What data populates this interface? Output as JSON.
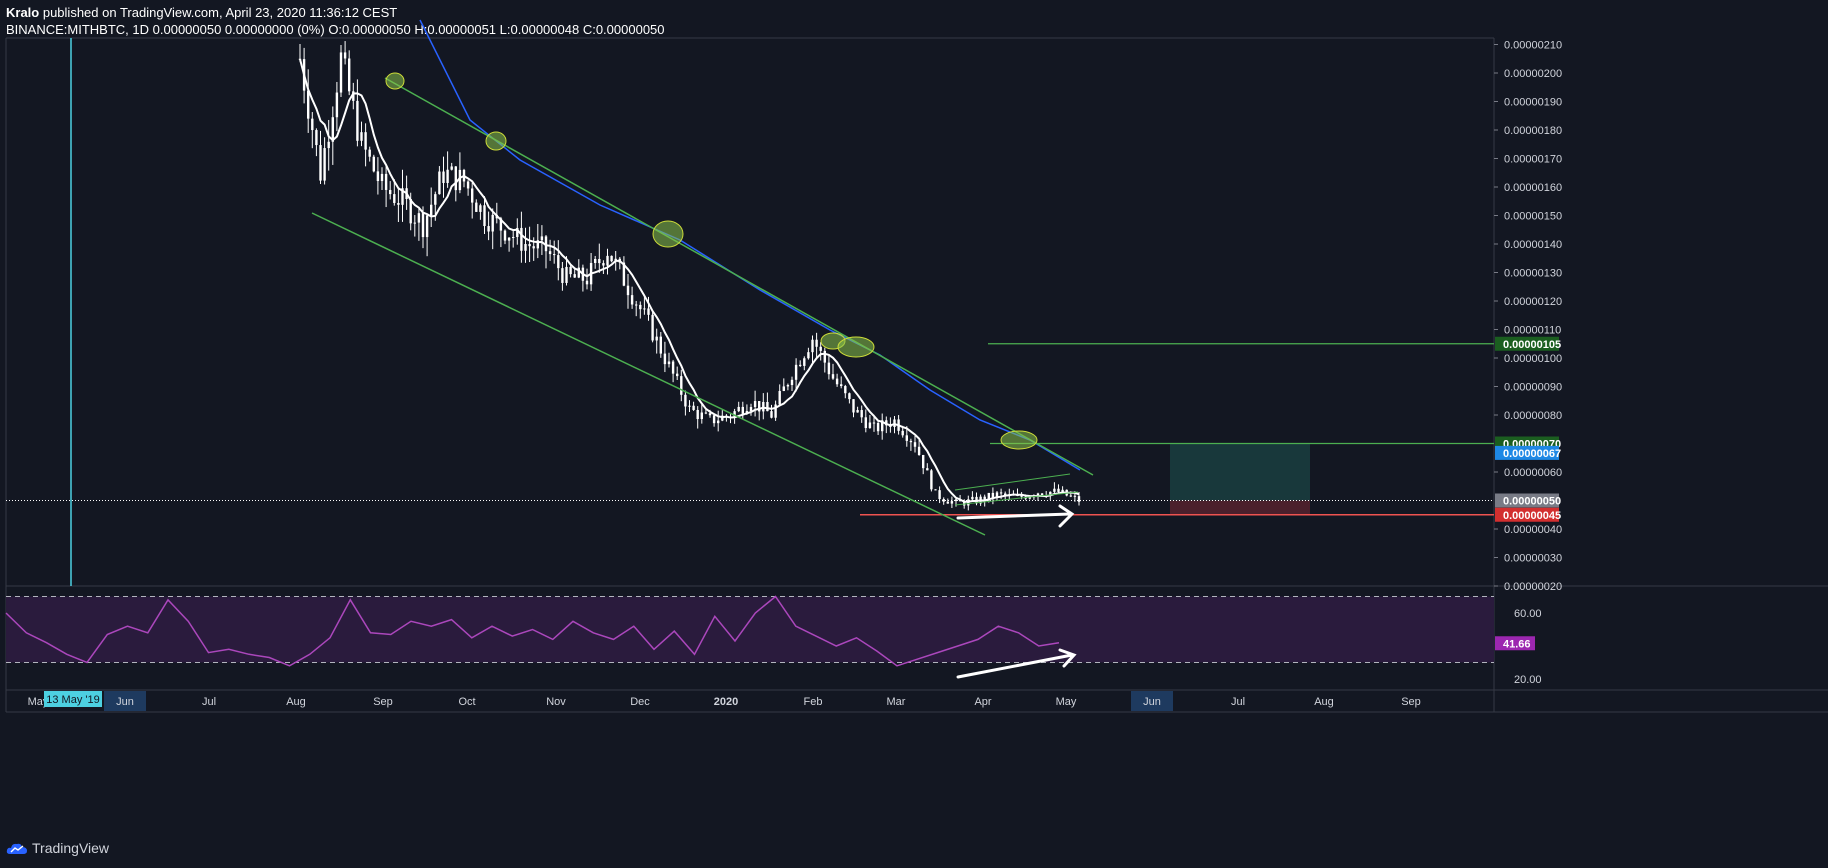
{
  "header": {
    "author": "Kralo",
    "published": " published on TradingView.com, April 23, 2020 11:36:12 CEST",
    "symbol": "BINANCE:MITHBTC, 1D",
    "quote": "0.00000050 0.00000000 (0%)",
    "o_label": "O:",
    "o": "0.00000050",
    "h_label": "H:",
    "h": "0.00000051",
    "l_label": "L:",
    "l": "0.00000048",
    "c_label": "C:",
    "c": "0.00000050"
  },
  "brand": "TradingView",
  "colors": {
    "background": "#131722",
    "candle": "#ffffff",
    "ma_fast": "#ffffff",
    "ma_slow": "#2962ff",
    "channel": "#4caf50",
    "stop": "#ef5350",
    "rsi": "#ab47bc",
    "crosshair": "#4dd0e1"
  },
  "chart_data": {
    "type": "candlestick",
    "price_axis": {
      "ticks": [
        "0.00000210",
        "0.00000200",
        "0.00000190",
        "0.00000180",
        "0.00000170",
        "0.00000160",
        "0.00000150",
        "0.00000140",
        "0.00000130",
        "0.00000120",
        "0.00000110",
        "0.00000100",
        "0.00000090",
        "0.00000080",
        "0.00000060",
        "0.00000040",
        "0.00000030",
        "0.00000020"
      ],
      "range": [
        1.5e-07,
        2.13e-06
      ]
    },
    "price_labels": [
      {
        "name": "target",
        "value": "0.00000105",
        "price": 1.05e-06,
        "color": "#1b5e20"
      },
      {
        "name": "resistance",
        "value": "0.00000070",
        "price": 7e-07,
        "color": "#1b5e20"
      },
      {
        "name": "ma",
        "value": "0.00000067",
        "price": 6.67e-07,
        "color": "#1e88e5"
      },
      {
        "name": "last",
        "value": "0.00000050",
        "price": 5e-07,
        "color": "#787b86"
      },
      {
        "name": "stop",
        "value": "0.00000045",
        "price": 4.5e-07,
        "color": "#d32f2f"
      }
    ],
    "time_axis": {
      "labels": [
        "May",
        "Jun",
        "Jul",
        "Aug",
        "Sep",
        "Oct",
        "Nov",
        "Dec",
        "2020",
        "Feb",
        "Mar",
        "Apr",
        "May",
        "Jun",
        "Jul",
        "Aug",
        "Sep"
      ],
      "highlight_label": "13 May '19",
      "highlight_month": "Jun"
    },
    "rsi": {
      "ticks": [
        "60.00",
        "20.00"
      ],
      "current": "41.66",
      "current_value": 41.66,
      "upper_band": 70,
      "lower_band": 30,
      "range": [
        15,
        75
      ]
    },
    "price_path": [
      [
        0,
        2.05e-06
      ],
      [
        5,
        1.65e-06
      ],
      [
        10,
        2.05e-06
      ],
      [
        15,
        1.75e-06
      ],
      [
        20,
        1.6e-06
      ],
      [
        25,
        1.55e-06
      ],
      [
        30,
        1.47e-06
      ],
      [
        35,
        1.65e-06
      ],
      [
        40,
        1.62e-06
      ],
      [
        45,
        1.5e-06
      ],
      [
        50,
        1.45e-06
      ],
      [
        55,
        1.4e-06
      ],
      [
        60,
        1.38e-06
      ],
      [
        65,
        1.28e-06
      ],
      [
        70,
        1.28e-06
      ],
      [
        75,
        1.38e-06
      ],
      [
        80,
        1.25e-06
      ],
      [
        85,
        1.12e-06
      ],
      [
        90,
        9.7e-07
      ],
      [
        95,
        8.2e-07
      ],
      [
        100,
        7.8e-07
      ],
      [
        105,
        8e-07
      ],
      [
        110,
        8.5e-07
      ],
      [
        115,
        8e-07
      ],
      [
        120,
        9.5e-07
      ],
      [
        125,
        1.07e-06
      ],
      [
        130,
        9.3e-07
      ],
      [
        135,
        8.2e-07
      ],
      [
        140,
        7.5e-07
      ],
      [
        145,
        7.8e-07
      ],
      [
        150,
        7e-07
      ],
      [
        155,
        5.2e-07
      ],
      [
        160,
        4.9e-07
      ],
      [
        165,
        5e-07
      ],
      [
        170,
        5.2e-07
      ],
      [
        175,
        5.1e-07
      ],
      [
        180,
        5.3e-07
      ],
      [
        185,
        5.3e-07
      ],
      [
        190,
        5e-07
      ]
    ],
    "rsi_path": [
      [
        0,
        60
      ],
      [
        5,
        48
      ],
      [
        10,
        42
      ],
      [
        15,
        35
      ],
      [
        20,
        30
      ],
      [
        25,
        47
      ],
      [
        30,
        52
      ],
      [
        35,
        48
      ],
      [
        40,
        68
      ],
      [
        45,
        55
      ],
      [
        50,
        36
      ],
      [
        55,
        38
      ],
      [
        60,
        35
      ],
      [
        65,
        33
      ],
      [
        70,
        28
      ],
      [
        75,
        35
      ],
      [
        80,
        45
      ],
      [
        85,
        68
      ],
      [
        90,
        48
      ],
      [
        95,
        47
      ],
      [
        100,
        55
      ],
      [
        105,
        52
      ],
      [
        110,
        56
      ],
      [
        115,
        45
      ],
      [
        120,
        52
      ],
      [
        125,
        46
      ],
      [
        130,
        50
      ],
      [
        135,
        44
      ],
      [
        140,
        55
      ],
      [
        145,
        48
      ],
      [
        150,
        44
      ],
      [
        155,
        52
      ],
      [
        160,
        38
      ],
      [
        165,
        49
      ],
      [
        170,
        35
      ],
      [
        175,
        58
      ],
      [
        180,
        43
      ],
      [
        185,
        60
      ],
      [
        190,
        70
      ],
      [
        195,
        52
      ],
      [
        200,
        46
      ],
      [
        205,
        40
      ],
      [
        210,
        45
      ],
      [
        215,
        37
      ],
      [
        220,
        28
      ],
      [
        225,
        32
      ],
      [
        230,
        36
      ],
      [
        235,
        40
      ],
      [
        240,
        44
      ],
      [
        245,
        52
      ],
      [
        250,
        48
      ],
      [
        255,
        40
      ],
      [
        260,
        42
      ]
    ]
  }
}
